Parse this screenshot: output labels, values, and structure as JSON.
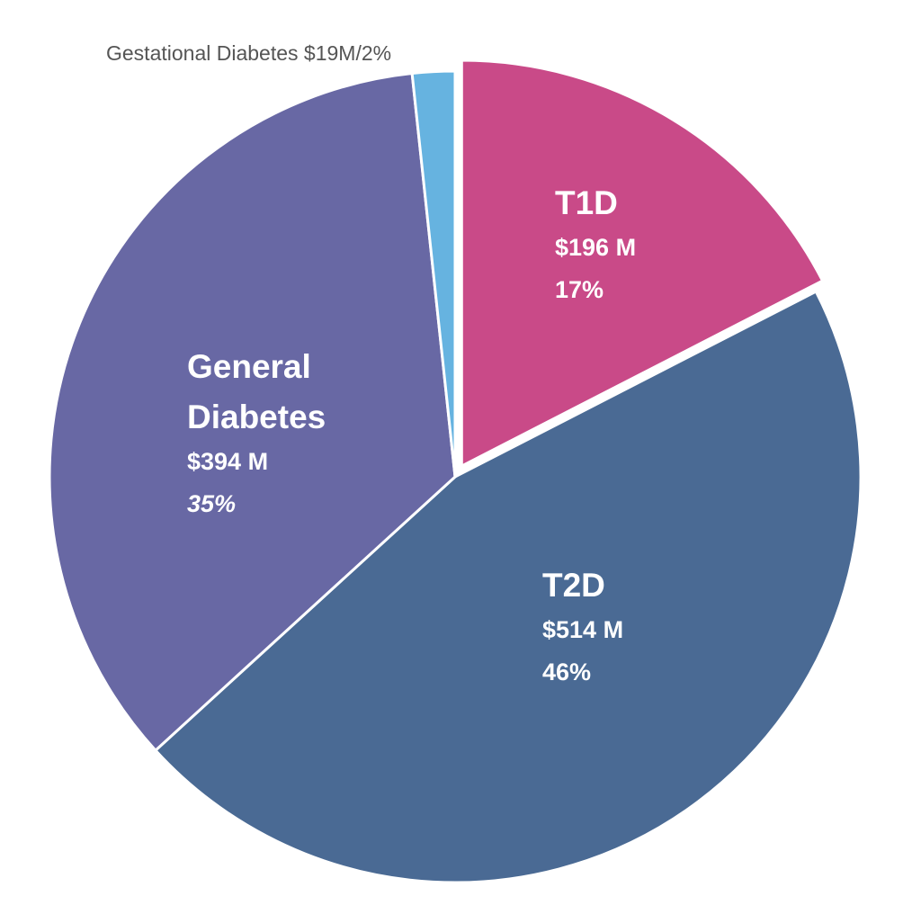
{
  "chart_data": {
    "type": "pie",
    "title": "",
    "start_angle_deg": 0,
    "direction": "clockwise",
    "slices": [
      {
        "name": "T1D",
        "value": 196,
        "percent": 17,
        "value_label": "$196 M",
        "percent_label": "17%",
        "color": "#c94a88",
        "exploded": true,
        "label_lines": [
          "T1D"
        ],
        "percent_italic": false,
        "label_position": "inside"
      },
      {
        "name": "T2D",
        "value": 514,
        "percent": 46,
        "value_label": "$514 M",
        "percent_label": "46%",
        "color": "#4a6a94",
        "exploded": false,
        "label_lines": [
          "T2D"
        ],
        "percent_italic": false,
        "label_position": "inside"
      },
      {
        "name": "General Diabetes",
        "value": 394,
        "percent": 35,
        "value_label": "$394 M",
        "percent_label": "35%",
        "color": "#6868a4",
        "exploded": false,
        "label_lines": [
          "General",
          "Diabetes"
        ],
        "percent_italic": true,
        "label_position": "inside"
      },
      {
        "name": "Gestational Diabetes",
        "value": 19,
        "percent": 2,
        "value_label": "$19M",
        "percent_label": "2%",
        "color": "#66b3e0",
        "exploded": false,
        "label_text": "Gestational Diabetes $19M/2%",
        "label_position": "outside-top"
      }
    ]
  }
}
